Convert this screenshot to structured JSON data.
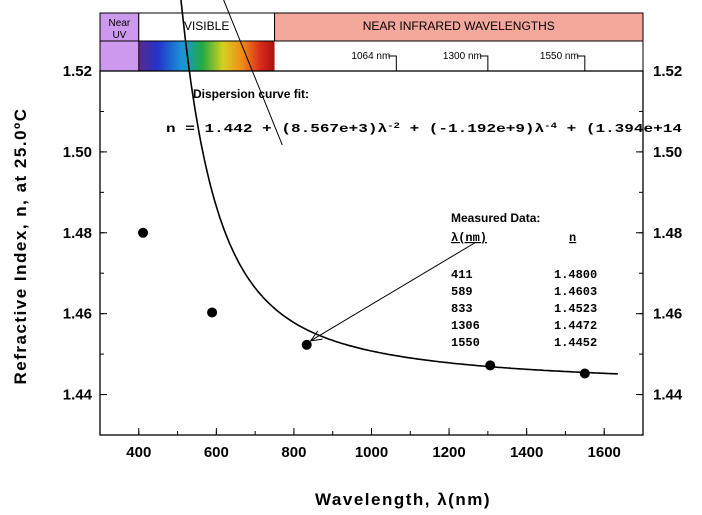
{
  "chart_data": {
    "type": "scatter",
    "xlabel": "Wavelength, λ(nm)",
    "ylabel": "Refractive Index, n, at 25.0ºC",
    "xlim": [
      300,
      1700
    ],
    "ylim": [
      1.43,
      1.52
    ],
    "x_ticks": [
      "400",
      "600",
      "800",
      "1000",
      "1200",
      "1400",
      "1600"
    ],
    "y_ticks": [
      "1.44",
      "1.46",
      "1.48",
      "1.50",
      "1.52"
    ],
    "grid": false,
    "series": [
      {
        "name": "Measured Data",
        "x": [
          411,
          589,
          833,
          1306,
          1550
        ],
        "y": [
          1.48,
          1.4603,
          1.4523,
          1.4472,
          1.4452
        ]
      },
      {
        "name": "Dispersion curve fit",
        "coefficients": [
          1.442,
          8567,
          -1192000000,
          1394000000000000
        ],
        "x_range": [
          395,
          1635
        ]
      }
    ],
    "bands": [
      {
        "label_lines": [
          "Near",
          "UV"
        ],
        "from": 300,
        "to": 400,
        "color": "#cc99ee"
      },
      {
        "label_lines": [
          "VISIBLE"
        ],
        "from": 400,
        "to": 750,
        "color": "#ffffff"
      },
      {
        "label_lines": [
          "NEAR INFRARED WAVELENGTHS"
        ],
        "from": 750,
        "to": 1700,
        "color": "#f4a79b"
      }
    ],
    "wavelength_markers": [
      {
        "label": "1064 nm",
        "x": 1064
      },
      {
        "label": "1300 nm",
        "x": 1300
      },
      {
        "label": "1550 nm",
        "x": 1550
      }
    ],
    "annotations": {
      "fit_title": "Dispersion curve fit:",
      "equation": "n = 1.442 + (8.567e+3)λ-2 + (-1.192e+9)λ-4 + (1.394e+14",
      "table_title": "Measured Data:",
      "table_col1": "λ(nm)",
      "table_col2": "n",
      "table_rows": [
        [
          "411",
          "1.4800"
        ],
        [
          "589",
          "1.4603"
        ],
        [
          "833",
          "1.4523"
        ],
        [
          "1306",
          "1.4472"
        ],
        [
          "1550",
          "1.4452"
        ]
      ]
    }
  }
}
